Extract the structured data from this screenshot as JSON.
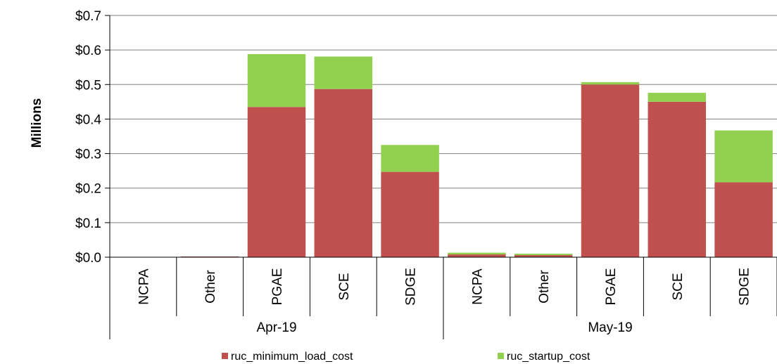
{
  "chart_data": {
    "type": "bar",
    "stacked": true,
    "title": "",
    "ylabel": "Millions",
    "xlabel": "",
    "ylim": [
      0,
      0.7
    ],
    "y_ticks": [
      "$0.0",
      "$0.1",
      "$0.2",
      "$0.3",
      "$0.4",
      "$0.5",
      "$0.6",
      "$0.7"
    ],
    "grid": true,
    "legend_position": "bottom",
    "groups": [
      {
        "label": "Apr-19",
        "categories": [
          "NCPA",
          "Other",
          "PGAE",
          "SCE",
          "SDGE"
        ]
      },
      {
        "label": "May-19",
        "categories": [
          "NCPA",
          "Other",
          "PGAE",
          "SCE",
          "SDGE"
        ]
      }
    ],
    "series": [
      {
        "name": "ruc_minimum_load_cost",
        "color": "#c0504d",
        "values": [
          0.0,
          0.002,
          0.435,
          0.487,
          0.247,
          0.008,
          0.006,
          0.5,
          0.45,
          0.217
        ]
      },
      {
        "name": "ruc_startup_cost",
        "color": "#92d050",
        "values": [
          0.0,
          0.0,
          0.153,
          0.094,
          0.078,
          0.005,
          0.004,
          0.007,
          0.026,
          0.15
        ]
      }
    ]
  }
}
